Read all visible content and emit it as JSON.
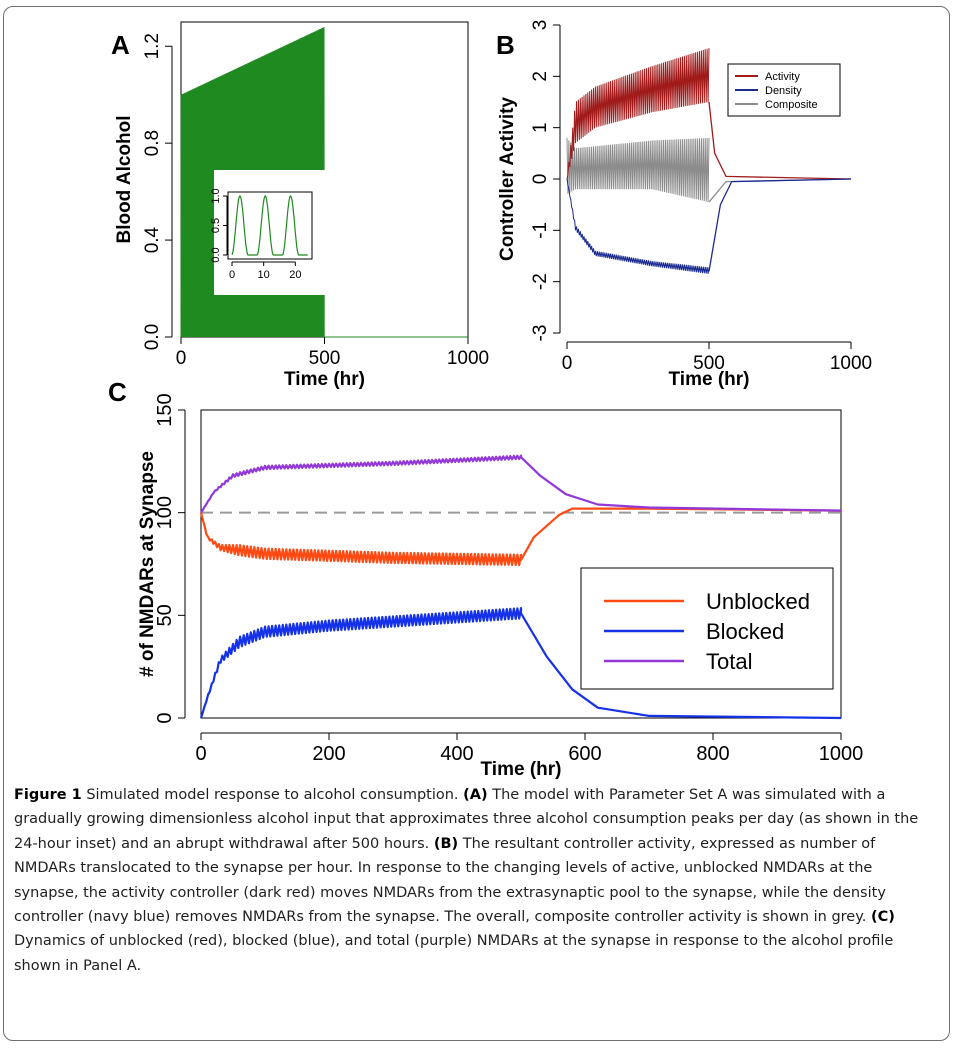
{
  "panels": {
    "a": {
      "letter": "A",
      "chart_data": {
        "type": "line",
        "xlabel": "Time (hr)",
        "ylabel": "Blood Alcohol",
        "xlim": [
          0,
          1000
        ],
        "ylim": [
          0,
          1.3
        ],
        "xticks": [
          "0",
          "500",
          "1000"
        ],
        "yticks": [
          "0.0",
          "0.4",
          "0.8",
          "1.2"
        ],
        "series": [
          {
            "color": "#1f8a1f",
            "points": [
              [
                0,
                0
              ],
              [
                3,
                1.0
              ],
              [
                6,
                0
              ],
              [
                500,
                0
              ],
              [
                503,
                1.28
              ],
              [
                506,
                0
              ],
              [
                1000,
                0
              ]
            ]
          }
        ],
        "inset": {
          "xlim": [
            0,
            24
          ],
          "ylim": [
            0,
            1.0
          ],
          "xticks": [
            "0",
            "10",
            "20"
          ],
          "yticks": [
            "0.0",
            "0.5",
            "1.0"
          ],
          "peaks_at_hr": [
            2.5,
            10.5,
            18.5
          ]
        }
      }
    },
    "b": {
      "letter": "B",
      "chart_data": {
        "type": "line",
        "xlabel": "Time (hr)",
        "ylabel": "Controller Activity",
        "xlim": [
          0,
          1000
        ],
        "ylim": [
          -3,
          3
        ],
        "xticks": [
          "0",
          "500",
          "1000"
        ],
        "yticks": [
          "-3",
          "-2",
          "-1",
          "0",
          "1",
          "2",
          "3"
        ],
        "legend": {
          "position": "top-right",
          "entries": [
            {
              "label": "Activity",
              "color": "#a11b1b"
            },
            {
              "label": "Density",
              "color": "#1b2b8f"
            },
            {
              "label": "Composite",
              "color": "#8c8c8c"
            }
          ]
        },
        "series": [
          {
            "name": "Activity",
            "color": "#a11b1b",
            "upper": [
              [
                0,
                0
              ],
              [
                30,
                1.5
              ],
              [
                100,
                1.8
              ],
              [
                300,
                2.2
              ],
              [
                500,
                2.55
              ]
            ],
            "lower": [
              [
                0,
                0
              ],
              [
                30,
                0.7
              ],
              [
                100,
                1.0
              ],
              [
                300,
                1.3
              ],
              [
                500,
                1.5
              ]
            ],
            "after": [
              [
                500,
                1.5
              ],
              [
                520,
                0.5
              ],
              [
                560,
                0.05
              ],
              [
                1000,
                0
              ]
            ]
          },
          {
            "name": "Density",
            "color": "#1b2b8f",
            "upper": [
              [
                0,
                0
              ],
              [
                30,
                -0.9
              ],
              [
                100,
                -1.4
              ],
              [
                300,
                -1.6
              ],
              [
                500,
                -1.72
              ]
            ],
            "lower": [
              [
                0,
                0
              ],
              [
                30,
                -1.0
              ],
              [
                100,
                -1.5
              ],
              [
                300,
                -1.7
              ],
              [
                500,
                -1.85
              ]
            ],
            "after": [
              [
                500,
                -1.8
              ],
              [
                540,
                -0.5
              ],
              [
                580,
                -0.05
              ],
              [
                1000,
                0
              ]
            ]
          },
          {
            "name": "Composite",
            "color": "#8c8c8c",
            "upper": [
              [
                0,
                0.8
              ],
              [
                30,
                0.6
              ],
              [
                300,
                0.75
              ],
              [
                500,
                0.8
              ]
            ],
            "lower": [
              [
                0,
                -0.3
              ],
              [
                30,
                -0.2
              ],
              [
                300,
                -0.2
              ],
              [
                500,
                -0.45
              ]
            ],
            "after": [
              [
                500,
                -0.45
              ],
              [
                560,
                -0.05
              ],
              [
                1000,
                0
              ]
            ]
          }
        ]
      }
    },
    "c": {
      "letter": "C",
      "chart_data": {
        "type": "line",
        "xlabel": "Time (hr)",
        "ylabel": "# of NMDARs at Synapse",
        "xlim": [
          0,
          1000
        ],
        "ylim": [
          0,
          150
        ],
        "xticks": [
          "0",
          "200",
          "400",
          "600",
          "800",
          "1000"
        ],
        "yticks": [
          "0",
          "50",
          "100",
          "150"
        ],
        "reference_line": 100,
        "legend": {
          "position": "bottom-right",
          "entries": [
            {
              "label": "Unblocked",
              "color": "#ff4a14"
            },
            {
              "label": "Blocked",
              "color": "#1532e8"
            },
            {
              "label": "Total",
              "color": "#9338d8"
            }
          ]
        },
        "series": [
          {
            "name": "Unblocked",
            "color": "#ff4a14",
            "center": [
              [
                0,
                100
              ],
              [
                10,
                88
              ],
              [
                30,
                83
              ],
              [
                100,
                80
              ],
              [
                300,
                78
              ],
              [
                500,
                77
              ]
            ],
            "amp": 2.5,
            "after": [
              [
                500,
                77
              ],
              [
                520,
                88
              ],
              [
                560,
                99
              ],
              [
                580,
                102
              ],
              [
                700,
                102
              ],
              [
                1000,
                101
              ]
            ]
          },
          {
            "name": "Blocked",
            "color": "#1532e8",
            "center": [
              [
                0,
                0
              ],
              [
                10,
                10
              ],
              [
                30,
                28
              ],
              [
                60,
                37
              ],
              [
                100,
                42
              ],
              [
                200,
                45
              ],
              [
                300,
                47
              ],
              [
                400,
                49
              ],
              [
                500,
                51
              ]
            ],
            "amp": 2.5,
            "after": [
              [
                500,
                51
              ],
              [
                540,
                30
              ],
              [
                580,
                14
              ],
              [
                620,
                5
              ],
              [
                700,
                1
              ],
              [
                1000,
                0
              ]
            ]
          },
          {
            "name": "Total",
            "color": "#9338d8",
            "center": [
              [
                0,
                100
              ],
              [
                20,
                110
              ],
              [
                50,
                118
              ],
              [
                100,
                122
              ],
              [
                300,
                124
              ],
              [
                500,
                127
              ]
            ],
            "amp": 0.8,
            "after": [
              [
                500,
                127
              ],
              [
                530,
                118
              ],
              [
                570,
                109
              ],
              [
                620,
                104
              ],
              [
                700,
                102.5
              ],
              [
                1000,
                101
              ]
            ]
          }
        ]
      }
    }
  },
  "caption": {
    "figure_label": "Figure 1",
    "title": "Simulated model response to alcohol consumption.",
    "a_tag": "(A)",
    "a_text": "The model with Parameter Set A was simulated with a gradually growing dimensionless alcohol input that approximates three alcohol consumption peaks per day (as shown in the 24-hour inset) and an abrupt withdrawal after 500 hours.",
    "b_tag": "(B)",
    "b_text": "The resultant controller activity, expressed as number of NMDARs translocated to the synapse per hour. In response to the changing levels of active, unblocked NMDARs at the synapse, the activity controller (dark red) moves NMDARs from the extrasynaptic pool to the synapse, while the density controller (navy blue) removes NMDARs from the synapse. The overall, composite controller activity is shown in grey.",
    "c_tag": "(C)",
    "c_text": "Dynamics of unblocked (red), blocked (blue), and total (purple) NMDARs at the synapse in response to the alcohol profile shown in Panel A."
  }
}
